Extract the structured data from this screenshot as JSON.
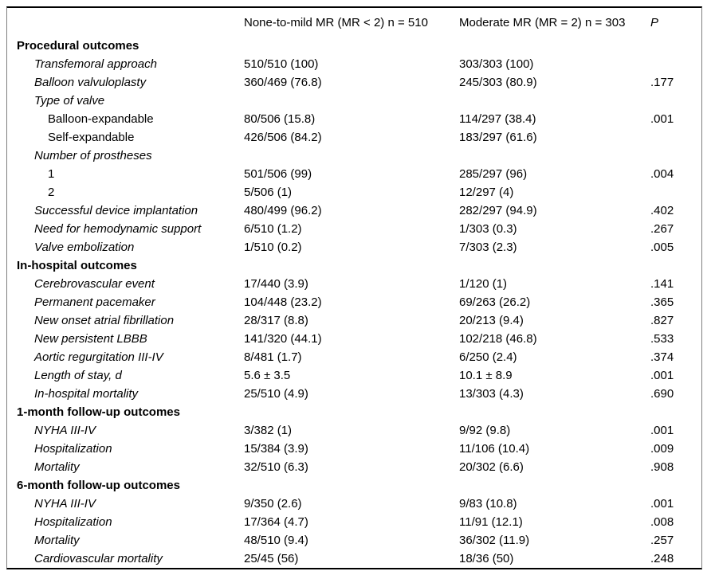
{
  "page": {
    "background": "#ffffff",
    "text_color": "#000000",
    "rule_color": "#000000",
    "side_rule_color": "#808080"
  },
  "table": {
    "header": {
      "label": "",
      "group1": "None-to-mild MR (MR < 2) n = 510",
      "group2": "Moderate MR (MR = 2) n = 303",
      "p": "P"
    },
    "rows": [
      {
        "style": "section",
        "label": "Procedural outcomes",
        "group1": "",
        "group2": "",
        "p": ""
      },
      {
        "style": "item",
        "label": "Transfemoral approach",
        "group1": "510/510 (100)",
        "group2": "303/303 (100)",
        "p": ""
      },
      {
        "style": "item",
        "label": "Balloon valvuloplasty",
        "group1": "360/469 (76.8)",
        "group2": "245/303 (80.9)",
        "p": ".177"
      },
      {
        "style": "item",
        "label": "Type of valve",
        "group1": "",
        "group2": "",
        "p": ""
      },
      {
        "style": "subitem",
        "label": "Balloon-expandable",
        "group1": "80/506 (15.8)",
        "group2": "114/297 (38.4)",
        "p": ".001"
      },
      {
        "style": "subitem",
        "label": "Self-expandable",
        "group1": "426/506 (84.2)",
        "group2": "183/297 (61.6)",
        "p": ""
      },
      {
        "style": "item",
        "label": "Number of prostheses",
        "group1": "",
        "group2": "",
        "p": ""
      },
      {
        "style": "subitem",
        "label": "1",
        "group1": "501/506 (99)",
        "group2": "285/297 (96)",
        "p": ".004"
      },
      {
        "style": "subitem",
        "label": "2",
        "group1": "5/506 (1)",
        "group2": "12/297 (4)",
        "p": ""
      },
      {
        "style": "item",
        "label": "Successful device implantation",
        "group1": "480/499 (96.2)",
        "group2": "282/297 (94.9)",
        "p": ".402"
      },
      {
        "style": "item",
        "label": "Need for hemodynamic support",
        "group1": "6/510 (1.2)",
        "group2": "1/303 (0.3)",
        "p": ".267"
      },
      {
        "style": "item",
        "label": "Valve embolization",
        "group1": "1/510 (0.2)",
        "group2": "7/303 (2.3)",
        "p": ".005"
      },
      {
        "style": "section",
        "label": "In-hospital outcomes",
        "group1": "",
        "group2": "",
        "p": ""
      },
      {
        "style": "item",
        "label": "Cerebrovascular event",
        "group1": "17/440 (3.9)",
        "group2": "1/120 (1)",
        "p": ".141"
      },
      {
        "style": "item",
        "label": "Permanent pacemaker",
        "group1": "104/448 (23.2)",
        "group2": "69/263 (26.2)",
        "p": ".365"
      },
      {
        "style": "item",
        "label": "New onset atrial fibrillation",
        "group1": "28/317 (8.8)",
        "group2": "20/213 (9.4)",
        "p": ".827"
      },
      {
        "style": "item",
        "label": "New persistent LBBB",
        "group1": "141/320 (44.1)",
        "group2": "102/218 (46.8)",
        "p": ".533"
      },
      {
        "style": "item",
        "label": "Aortic regurgitation III-IV",
        "group1": "8/481 (1.7)",
        "group2": "6/250 (2.4)",
        "p": ".374"
      },
      {
        "style": "item",
        "label": "Length of stay, d",
        "group1": "5.6 ± 3.5",
        "group2": "10.1 ± 8.9",
        "p": ".001"
      },
      {
        "style": "item",
        "label": "In-hospital mortality",
        "group1": "25/510 (4.9)",
        "group2": "13/303 (4.3)",
        "p": ".690"
      },
      {
        "style": "section",
        "label": "1-month follow-up outcomes",
        "group1": "",
        "group2": "",
        "p": ""
      },
      {
        "style": "item",
        "label": "NYHA III-IV",
        "group1": "3/382 (1)",
        "group2": "9/92 (9.8)",
        "p": ".001"
      },
      {
        "style": "item",
        "label": "Hospitalization",
        "group1": "15/384 (3.9)",
        "group2": "11/106 (10.4)",
        "p": ".009"
      },
      {
        "style": "item",
        "label": "Mortality",
        "group1": "32/510 (6.3)",
        "group2": "20/302 (6.6)",
        "p": ".908"
      },
      {
        "style": "section",
        "label": "6-month follow-up outcomes",
        "group1": "",
        "group2": "",
        "p": ""
      },
      {
        "style": "item",
        "label": "NYHA III-IV",
        "group1": "9/350 (2.6)",
        "group2": "9/83 (10.8)",
        "p": ".001"
      },
      {
        "style": "item",
        "label": "Hospitalization",
        "group1": "17/364 (4.7)",
        "group2": "11/91 (12.1)",
        "p": ".008"
      },
      {
        "style": "item",
        "label": "Mortality",
        "group1": "48/510 (9.4)",
        "group2": "36/302 (11.9)",
        "p": ".257"
      },
      {
        "style": "item",
        "label": "Cardiovascular mortality",
        "group1": "25/45 (56)",
        "group2": "18/36 (50)",
        "p": ".248"
      }
    ]
  }
}
